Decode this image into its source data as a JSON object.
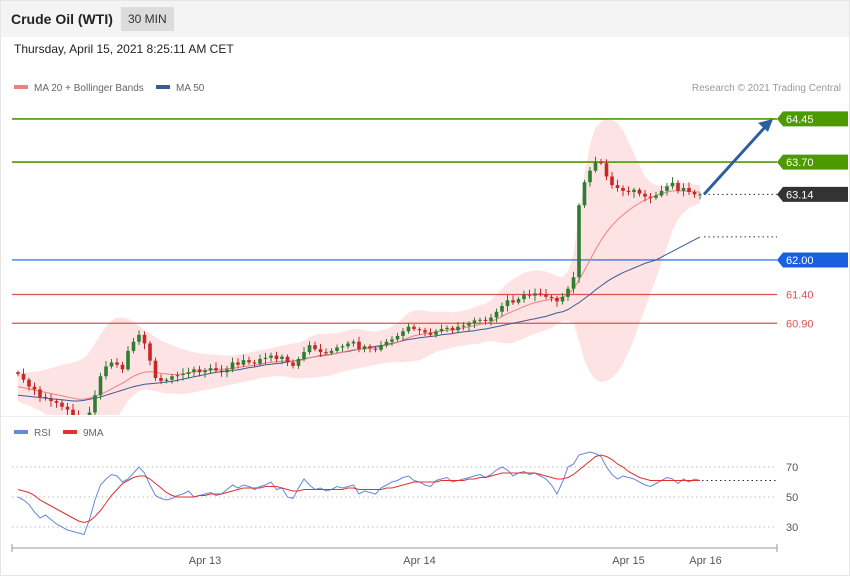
{
  "header": {
    "title": "Crude Oil (WTI)",
    "interval": "30 MIN",
    "timestamp": "Thursday, April 15, 2021 8:25:11 AM CET"
  },
  "legend": {
    "ma20_label": "MA 20 + Bollinger Bands",
    "ma50_label": "MA 50",
    "copyright": "Research © 2021 Trading Central",
    "rsi_label": "RSI",
    "rsi_ma_label": "9MA"
  },
  "colors": {
    "ma20": "#f08080",
    "bollinger_fill": "#fde0e0",
    "ma50": "#3a5a9a",
    "rsi": "#6688dd",
    "rsi_ma": "#e03030",
    "candle_up": "#2e7d32",
    "candle_down": "#c62828",
    "target_green": "#4c9900",
    "pivot_blue": "#1a5fe0",
    "support_red": "#e05050",
    "last_price": "#333333",
    "arrow": "#2c5fa0"
  },
  "chart_data": [
    {
      "type": "candlestick",
      "title": "Crude Oil (WTI)",
      "ylim": [
        59.55,
        64.9
      ],
      "x_ticks": [
        "Apr 13",
        "Apr 14",
        "Apr 15",
        "Apr 16"
      ],
      "levels": [
        {
          "value": 64.45,
          "label": "64.45",
          "kind": "target"
        },
        {
          "value": 63.7,
          "label": "63.70",
          "kind": "target"
        },
        {
          "value": 63.14,
          "label": "63.14",
          "kind": "last"
        },
        {
          "value": 62.0,
          "label": "62.00",
          "kind": "pivot"
        },
        {
          "value": 61.4,
          "label": "61.40",
          "kind": "support"
        },
        {
          "value": 60.9,
          "label": "60.90",
          "kind": "support"
        }
      ],
      "close": [
        60.02,
        59.92,
        59.8,
        59.75,
        59.62,
        59.6,
        59.55,
        59.52,
        59.45,
        59.4,
        59.3,
        59.2,
        59.12,
        59.35,
        59.65,
        59.98,
        60.15,
        60.22,
        60.18,
        60.1,
        60.42,
        60.58,
        60.7,
        60.55,
        60.25,
        59.95,
        59.9,
        59.92,
        59.98,
        60.0,
        60.02,
        60.05,
        60.1,
        60.05,
        60.08,
        60.12,
        60.08,
        60.05,
        60.1,
        60.22,
        60.18,
        60.26,
        60.22,
        60.2,
        60.28,
        60.3,
        60.34,
        60.28,
        60.32,
        60.22,
        60.16,
        60.28,
        60.4,
        60.52,
        60.45,
        60.4,
        60.38,
        60.42,
        60.48,
        60.5,
        60.55,
        60.58,
        60.45,
        60.5,
        60.46,
        60.44,
        60.52,
        60.58,
        60.62,
        60.68,
        60.76,
        60.84,
        60.8,
        60.78,
        60.74,
        60.7,
        60.76,
        60.8,
        60.82,
        60.78,
        60.84,
        60.86,
        60.9,
        60.95,
        60.96,
        60.94,
        61.0,
        61.1,
        61.2,
        61.3,
        61.26,
        61.32,
        61.4,
        61.38,
        61.42,
        61.4,
        61.36,
        61.34,
        61.28,
        61.36,
        61.5,
        61.7,
        62.95,
        63.35,
        63.55,
        63.7,
        63.68,
        63.45,
        63.3,
        63.25,
        63.2,
        63.18,
        63.22,
        63.15,
        63.1,
        63.08,
        63.12,
        63.2,
        63.28,
        63.34,
        63.2,
        63.25,
        63.18,
        63.14,
        63.14
      ],
      "ma50": [
        59.65,
        59.64,
        59.63,
        59.62,
        59.61,
        59.6,
        59.59,
        59.58,
        59.57,
        59.56,
        59.55,
        59.55,
        59.56,
        59.58,
        59.6,
        59.62,
        59.65,
        59.68,
        59.71,
        59.74,
        59.77,
        59.8,
        59.82,
        59.84,
        59.85,
        59.86,
        59.87,
        59.88,
        59.89,
        59.91,
        59.93,
        59.95,
        59.97,
        59.99,
        60.01,
        60.03,
        60.05,
        60.06,
        60.07,
        60.08,
        60.09,
        60.11,
        60.13,
        60.14,
        60.16,
        60.18,
        60.19,
        60.2,
        60.21,
        60.23,
        60.24,
        60.26,
        60.28,
        60.3,
        60.32,
        60.34,
        60.35,
        60.36,
        60.38,
        60.4,
        60.41,
        60.43,
        60.45,
        60.46,
        60.48,
        60.5,
        60.51,
        60.53,
        60.55,
        60.57,
        60.6,
        60.62,
        60.63,
        60.65,
        60.66,
        60.67,
        60.68,
        60.7,
        60.71,
        60.72,
        60.74,
        60.75,
        60.76,
        60.77,
        60.79,
        60.8,
        60.82,
        60.84,
        60.86,
        60.88,
        60.9,
        60.92,
        60.94,
        60.96,
        60.98,
        61.0,
        61.02,
        61.05,
        61.08,
        61.1,
        61.14,
        61.2,
        61.26,
        61.33,
        61.4,
        61.48,
        61.55,
        61.62,
        61.68,
        61.73,
        61.78,
        61.82,
        61.86,
        61.9,
        61.94,
        61.97,
        62.0,
        62.05,
        62.1,
        62.15,
        62.2,
        62.25,
        62.3,
        62.35,
        62.4
      ],
      "ma20": [
        59.8,
        59.78,
        59.76,
        59.74,
        59.72,
        59.7,
        59.68,
        59.66,
        59.64,
        59.62,
        59.6,
        59.58,
        59.58,
        59.6,
        59.63,
        59.67,
        59.71,
        59.76,
        59.81,
        59.86,
        59.92,
        59.98,
        60.02,
        60.05,
        60.06,
        60.05,
        60.03,
        60.02,
        60.01,
        60.01,
        60.02,
        60.04,
        60.06,
        60.07,
        60.08,
        60.09,
        60.1,
        60.1,
        60.11,
        60.12,
        60.13,
        60.15,
        60.16,
        60.17,
        60.19,
        60.21,
        60.22,
        60.23,
        60.24,
        60.25,
        60.24,
        60.25,
        60.27,
        60.3,
        60.32,
        60.33,
        60.34,
        60.36,
        60.38,
        60.4,
        60.42,
        60.44,
        60.45,
        60.46,
        60.47,
        60.48,
        60.5,
        60.52,
        60.54,
        60.57,
        60.61,
        60.65,
        60.68,
        60.7,
        60.72,
        60.73,
        60.75,
        60.77,
        60.78,
        60.79,
        60.8,
        60.82,
        60.84,
        60.86,
        60.88,
        60.9,
        60.93,
        60.97,
        61.02,
        61.07,
        61.11,
        61.15,
        61.19,
        61.23,
        61.26,
        61.28,
        61.3,
        61.32,
        61.33,
        61.35,
        61.4,
        61.5,
        61.65,
        61.82,
        62.0,
        62.18,
        62.34,
        62.48,
        62.6,
        62.7,
        62.78,
        62.86,
        62.93,
        62.99,
        63.04,
        63.08,
        63.12,
        63.15,
        63.18,
        63.2,
        63.2,
        63.2,
        63.19,
        63.18,
        63.18
      ],
      "bollinger": {
        "upper": [
          60.05,
          60.05,
          60.05,
          60.06,
          60.07,
          60.1,
          60.12,
          60.15,
          60.18,
          60.2,
          60.22,
          60.25,
          60.3,
          60.4,
          60.55,
          60.7,
          60.85,
          60.95,
          61.0,
          61.0,
          60.98,
          60.93,
          60.85,
          60.78,
          60.72,
          60.66,
          60.6,
          60.56,
          60.52,
          60.48,
          60.45,
          60.42,
          60.4,
          60.38,
          60.37,
          60.36,
          60.35,
          60.34,
          60.34,
          60.34,
          60.35,
          60.37,
          60.39,
          60.41,
          60.43,
          60.45,
          60.47,
          60.49,
          60.51,
          60.53,
          60.55,
          60.56,
          60.6,
          60.66,
          60.7,
          60.72,
          60.72,
          60.72,
          60.73,
          60.75,
          60.78,
          60.8,
          60.8,
          60.78,
          60.76,
          60.75,
          60.78,
          60.8,
          60.85,
          60.9,
          61.0,
          61.08,
          61.12,
          61.13,
          61.12,
          61.1,
          61.1,
          61.1,
          61.1,
          61.09,
          61.1,
          61.12,
          61.14,
          61.18,
          61.22,
          61.24,
          61.3,
          61.4,
          61.5,
          61.6,
          61.66,
          61.72,
          61.78,
          61.8,
          61.82,
          61.82,
          61.8,
          61.76,
          61.72,
          61.7,
          61.8,
          62.1,
          62.8,
          63.5,
          64.0,
          64.3,
          64.4,
          64.45,
          64.43,
          64.38,
          64.25,
          64.05,
          63.85,
          63.65,
          63.45,
          63.35,
          63.3,
          63.28,
          63.3,
          63.33,
          63.35,
          63.34,
          63.33,
          63.31,
          63.3
        ],
        "lower": [
          59.55,
          59.5,
          59.47,
          59.42,
          59.38,
          59.32,
          59.27,
          59.22,
          59.17,
          59.12,
          59.05,
          58.98,
          58.92,
          58.88,
          58.86,
          58.9,
          58.98,
          59.1,
          59.25,
          59.4,
          59.55,
          59.65,
          59.72,
          59.75,
          59.74,
          59.72,
          59.7,
          59.68,
          59.68,
          59.67,
          59.67,
          59.68,
          59.7,
          59.72,
          59.74,
          59.76,
          59.78,
          59.8,
          59.82,
          59.84,
          59.86,
          59.88,
          59.9,
          59.92,
          59.94,
          59.96,
          59.97,
          59.98,
          59.98,
          59.97,
          59.95,
          59.94,
          59.95,
          59.95,
          59.96,
          59.97,
          59.98,
          60.0,
          60.03,
          60.06,
          60.08,
          60.1,
          60.12,
          60.14,
          60.16,
          60.18,
          60.2,
          60.21,
          60.22,
          60.22,
          60.22,
          60.23,
          60.24,
          60.26,
          60.3,
          60.35,
          60.4,
          60.43,
          60.45,
          60.48,
          60.5,
          60.51,
          60.53,
          60.54,
          60.55,
          60.58,
          60.59,
          60.58,
          60.56,
          60.55,
          60.56,
          60.6,
          60.64,
          60.68,
          60.72,
          60.75,
          60.78,
          60.82,
          60.88,
          60.94,
          60.95,
          60.9,
          60.6,
          60.25,
          60.05,
          59.92,
          59.88,
          59.9,
          59.95,
          60.05,
          60.2,
          60.4,
          60.62,
          60.9,
          61.15,
          61.42,
          61.68,
          61.95,
          62.22,
          62.52,
          62.7,
          62.82,
          62.9,
          62.95,
          62.98
        ]
      },
      "forecast_arrow": {
        "from": 63.14,
        "to": 64.45
      }
    },
    {
      "type": "line",
      "ylim": [
        20,
        80
      ],
      "y_ticks": [
        30,
        50,
        70
      ],
      "series": [
        {
          "name": "RSI",
          "values": [
            50,
            48,
            45,
            40,
            36,
            38,
            35,
            32,
            30,
            28,
            27,
            26,
            25,
            35,
            48,
            58,
            62,
            65,
            64,
            60,
            62,
            66,
            70,
            66,
            58,
            51,
            49,
            48,
            49,
            51,
            52,
            54,
            50,
            51,
            52,
            53,
            51,
            52,
            55,
            58,
            56,
            58,
            57,
            55,
            57,
            58,
            60,
            55,
            56,
            50,
            49,
            56,
            62,
            58,
            55,
            56,
            54,
            55,
            57,
            56,
            57,
            58,
            52,
            54,
            53,
            52,
            56,
            58,
            60,
            61,
            63,
            64,
            61,
            60,
            58,
            57,
            61,
            62,
            63,
            60,
            61,
            62,
            63,
            64,
            65,
            63,
            65,
            68,
            70,
            68,
            64,
            66,
            67,
            65,
            66,
            64,
            62,
            58,
            52,
            60,
            70,
            72,
            78,
            79,
            80,
            79,
            77,
            70,
            65,
            62,
            64,
            63,
            62,
            60,
            58,
            57,
            59,
            61,
            63,
            62,
            59,
            62,
            60,
            62,
            61
          ]
        },
        {
          "name": "9MA",
          "values": [
            55,
            54,
            53,
            51,
            48,
            46,
            44,
            42,
            40,
            38,
            36,
            34,
            33,
            34,
            37,
            41,
            46,
            51,
            55,
            59,
            61,
            63,
            64,
            64,
            62,
            59,
            56,
            53,
            51,
            50,
            50,
            50,
            50,
            51,
            51,
            52,
            52,
            52,
            53,
            54,
            55,
            56,
            56,
            56,
            56,
            57,
            57,
            57,
            56,
            55,
            54,
            54,
            55,
            55,
            55,
            55,
            55,
            55,
            55,
            55,
            56,
            56,
            55,
            55,
            55,
            55,
            55,
            56,
            56,
            57,
            58,
            59,
            60,
            60,
            60,
            60,
            60,
            61,
            61,
            61,
            61,
            61,
            62,
            62,
            63,
            63,
            64,
            65,
            66,
            66,
            66,
            66,
            66,
            66,
            66,
            65,
            64,
            63,
            62,
            62,
            63,
            65,
            68,
            71,
            74,
            77,
            78,
            77,
            75,
            72,
            70,
            67,
            65,
            63,
            62,
            61,
            61,
            61,
            61,
            61,
            61,
            61,
            61,
            61,
            61
          ]
        }
      ]
    }
  ]
}
